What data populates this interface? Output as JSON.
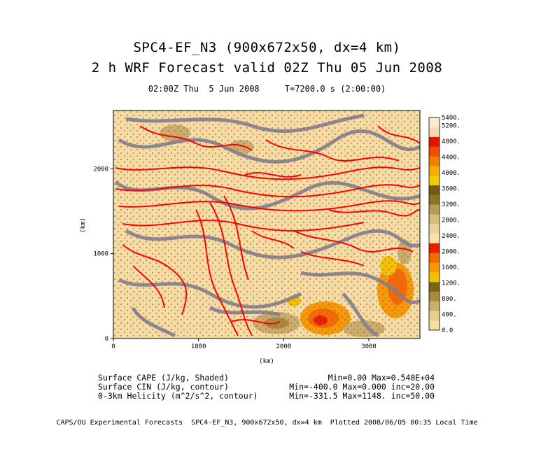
{
  "header": {
    "title_line1": "SPC4-EF_N3 (900x672x50, dx=4 km)",
    "title_line2": "2 h WRF Forecast valid 02Z Thu 05 Jun 2008",
    "subtitle": "02:00Z Thu  5 Jun 2008     T=7200.0 s (2:00:00)"
  },
  "chart_data": {
    "type": "heatmap",
    "xlabel": "(km)",
    "ylabel": "(km)",
    "xlim": [
      0,
      3600
    ],
    "ylim": [
      0,
      2688
    ],
    "x_ticks": [
      "0",
      "1000",
      "2000",
      "3000"
    ],
    "y_ticks": [
      "0",
      "1000",
      "2000"
    ],
    "x_tick_values": [
      0,
      1000,
      2000,
      3000
    ],
    "y_tick_values": [
      0,
      1000,
      2000
    ],
    "colorbar": {
      "labels": [
        "5400.",
        "5200.",
        "4800.",
        "4400.",
        "4000.",
        "3600.",
        "3200.",
        "2800.",
        "2400.",
        "2000.",
        "1600.",
        "1200.",
        "800.",
        "400.",
        "0.0"
      ],
      "label_values": [
        5400,
        5200,
        4800,
        4400,
        4000,
        3600,
        3200,
        2800,
        2400,
        2000,
        1600,
        1200,
        800,
        400,
        0
      ],
      "colors": [
        "#f5dca0",
        "#e8cf8c",
        "#c9ad6a",
        "#a88a3e",
        "#7a6418",
        "#f0c200",
        "#f59a00",
        "#f56a00",
        "#e81e00",
        "#f8e2a8",
        "#ecd498",
        "#d8bc7a",
        "#b89c52",
        "#8c7428",
        "#705c10",
        "#f3cc00",
        "#f7ad00",
        "#f57e00",
        "#f04e00",
        "#e81400",
        "#f8d8b0",
        "#ffe8d0"
      ],
      "min": 0,
      "max": 5400
    }
  },
  "footer": {
    "line1_left": "Surface CAPE (J/kg, Shaded)",
    "line1_right": "Min=0.00 Max=0.548E+04",
    "line2_left": "Surface CIN (J/kg, contour)",
    "line2_right": "Min=-400.0 Max=0.000 inc=20.00",
    "line3_left": "0-3km Helicity (m^2/s^2, contour)",
    "line3_right": "Min=-331.5 Max=1148. inc=50.00",
    "credit": "CAPS/OU Experimental Forecasts  SPC4-EF_N3, 900x672x50, dx=4 km  Plotted 2008/06/05 00:35 Local Time"
  },
  "colors": {
    "cin_contour": "#808090",
    "helicity_contour": "#ff0000",
    "background_field": "#f5dca0"
  }
}
